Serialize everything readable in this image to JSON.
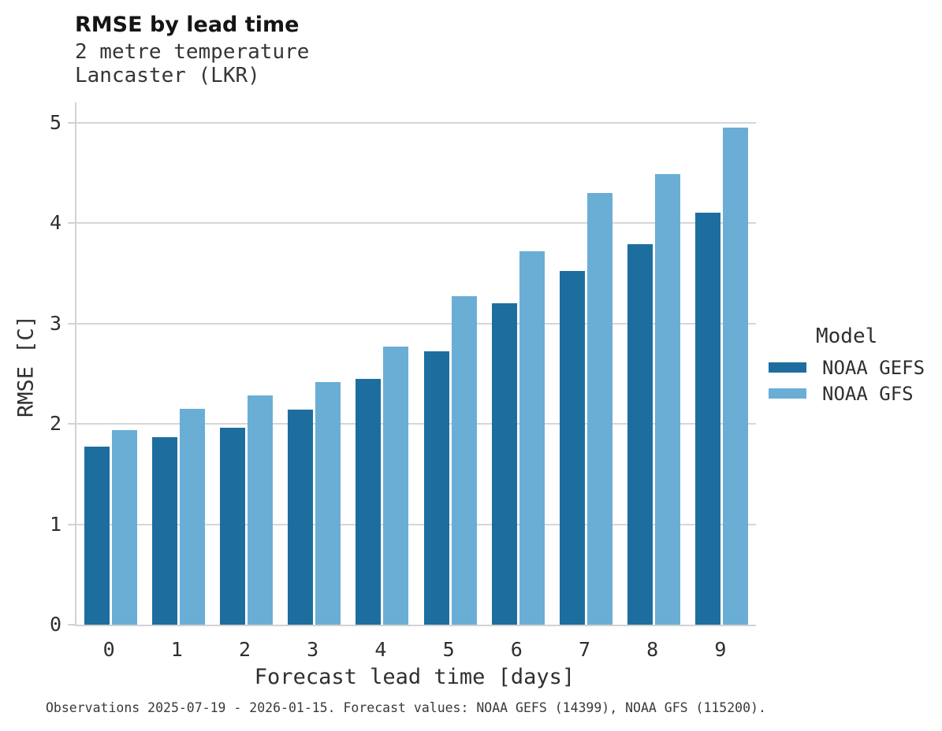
{
  "header": {
    "title": "RMSE by lead time",
    "subtitle_lines": [
      "2 metre temperature",
      "Lancaster (LKR)"
    ]
  },
  "chart_data": {
    "type": "bar",
    "title": "RMSE by lead time",
    "subtitle": "2 metre temperature",
    "station": "Lancaster (LKR)",
    "categories": [
      "0",
      "1",
      "2",
      "3",
      "4",
      "5",
      "6",
      "7",
      "8",
      "9"
    ],
    "series": [
      {
        "name": "NOAA GEFS",
        "color": "#1d6e9e",
        "values": [
          1.77,
          1.87,
          1.96,
          2.14,
          2.45,
          2.72,
          3.2,
          3.52,
          3.79,
          4.1
        ]
      },
      {
        "name": "NOAA GFS",
        "color": "#6aaed6",
        "values": [
          1.94,
          2.15,
          2.28,
          2.42,
          2.77,
          3.27,
          3.72,
          4.3,
          4.49,
          4.95
        ]
      }
    ],
    "xlabel": "Forecast lead time [days]",
    "ylabel": "RMSE [C]",
    "ylim": [
      0,
      5
    ],
    "yticks": [
      "0",
      "1",
      "2",
      "3",
      "4",
      "5"
    ],
    "grid": true,
    "legend_title": "Model",
    "legend_position": "right"
  },
  "legend": {
    "title": "Model",
    "entries": [
      {
        "label": "NOAA GEFS",
        "color": "#1d6e9e"
      },
      {
        "label": "NOAA GFS",
        "color": "#6aaed6"
      }
    ]
  },
  "caption": "Observations 2025-07-19 - 2026-01-15. Forecast values: NOAA GEFS (14399), NOAA GFS (115200).",
  "colors": {
    "gefs": "#1d6e9e",
    "gfs": "#6aaed6",
    "gridline": "#d6d6d6",
    "axis": "#d2d2d2"
  }
}
